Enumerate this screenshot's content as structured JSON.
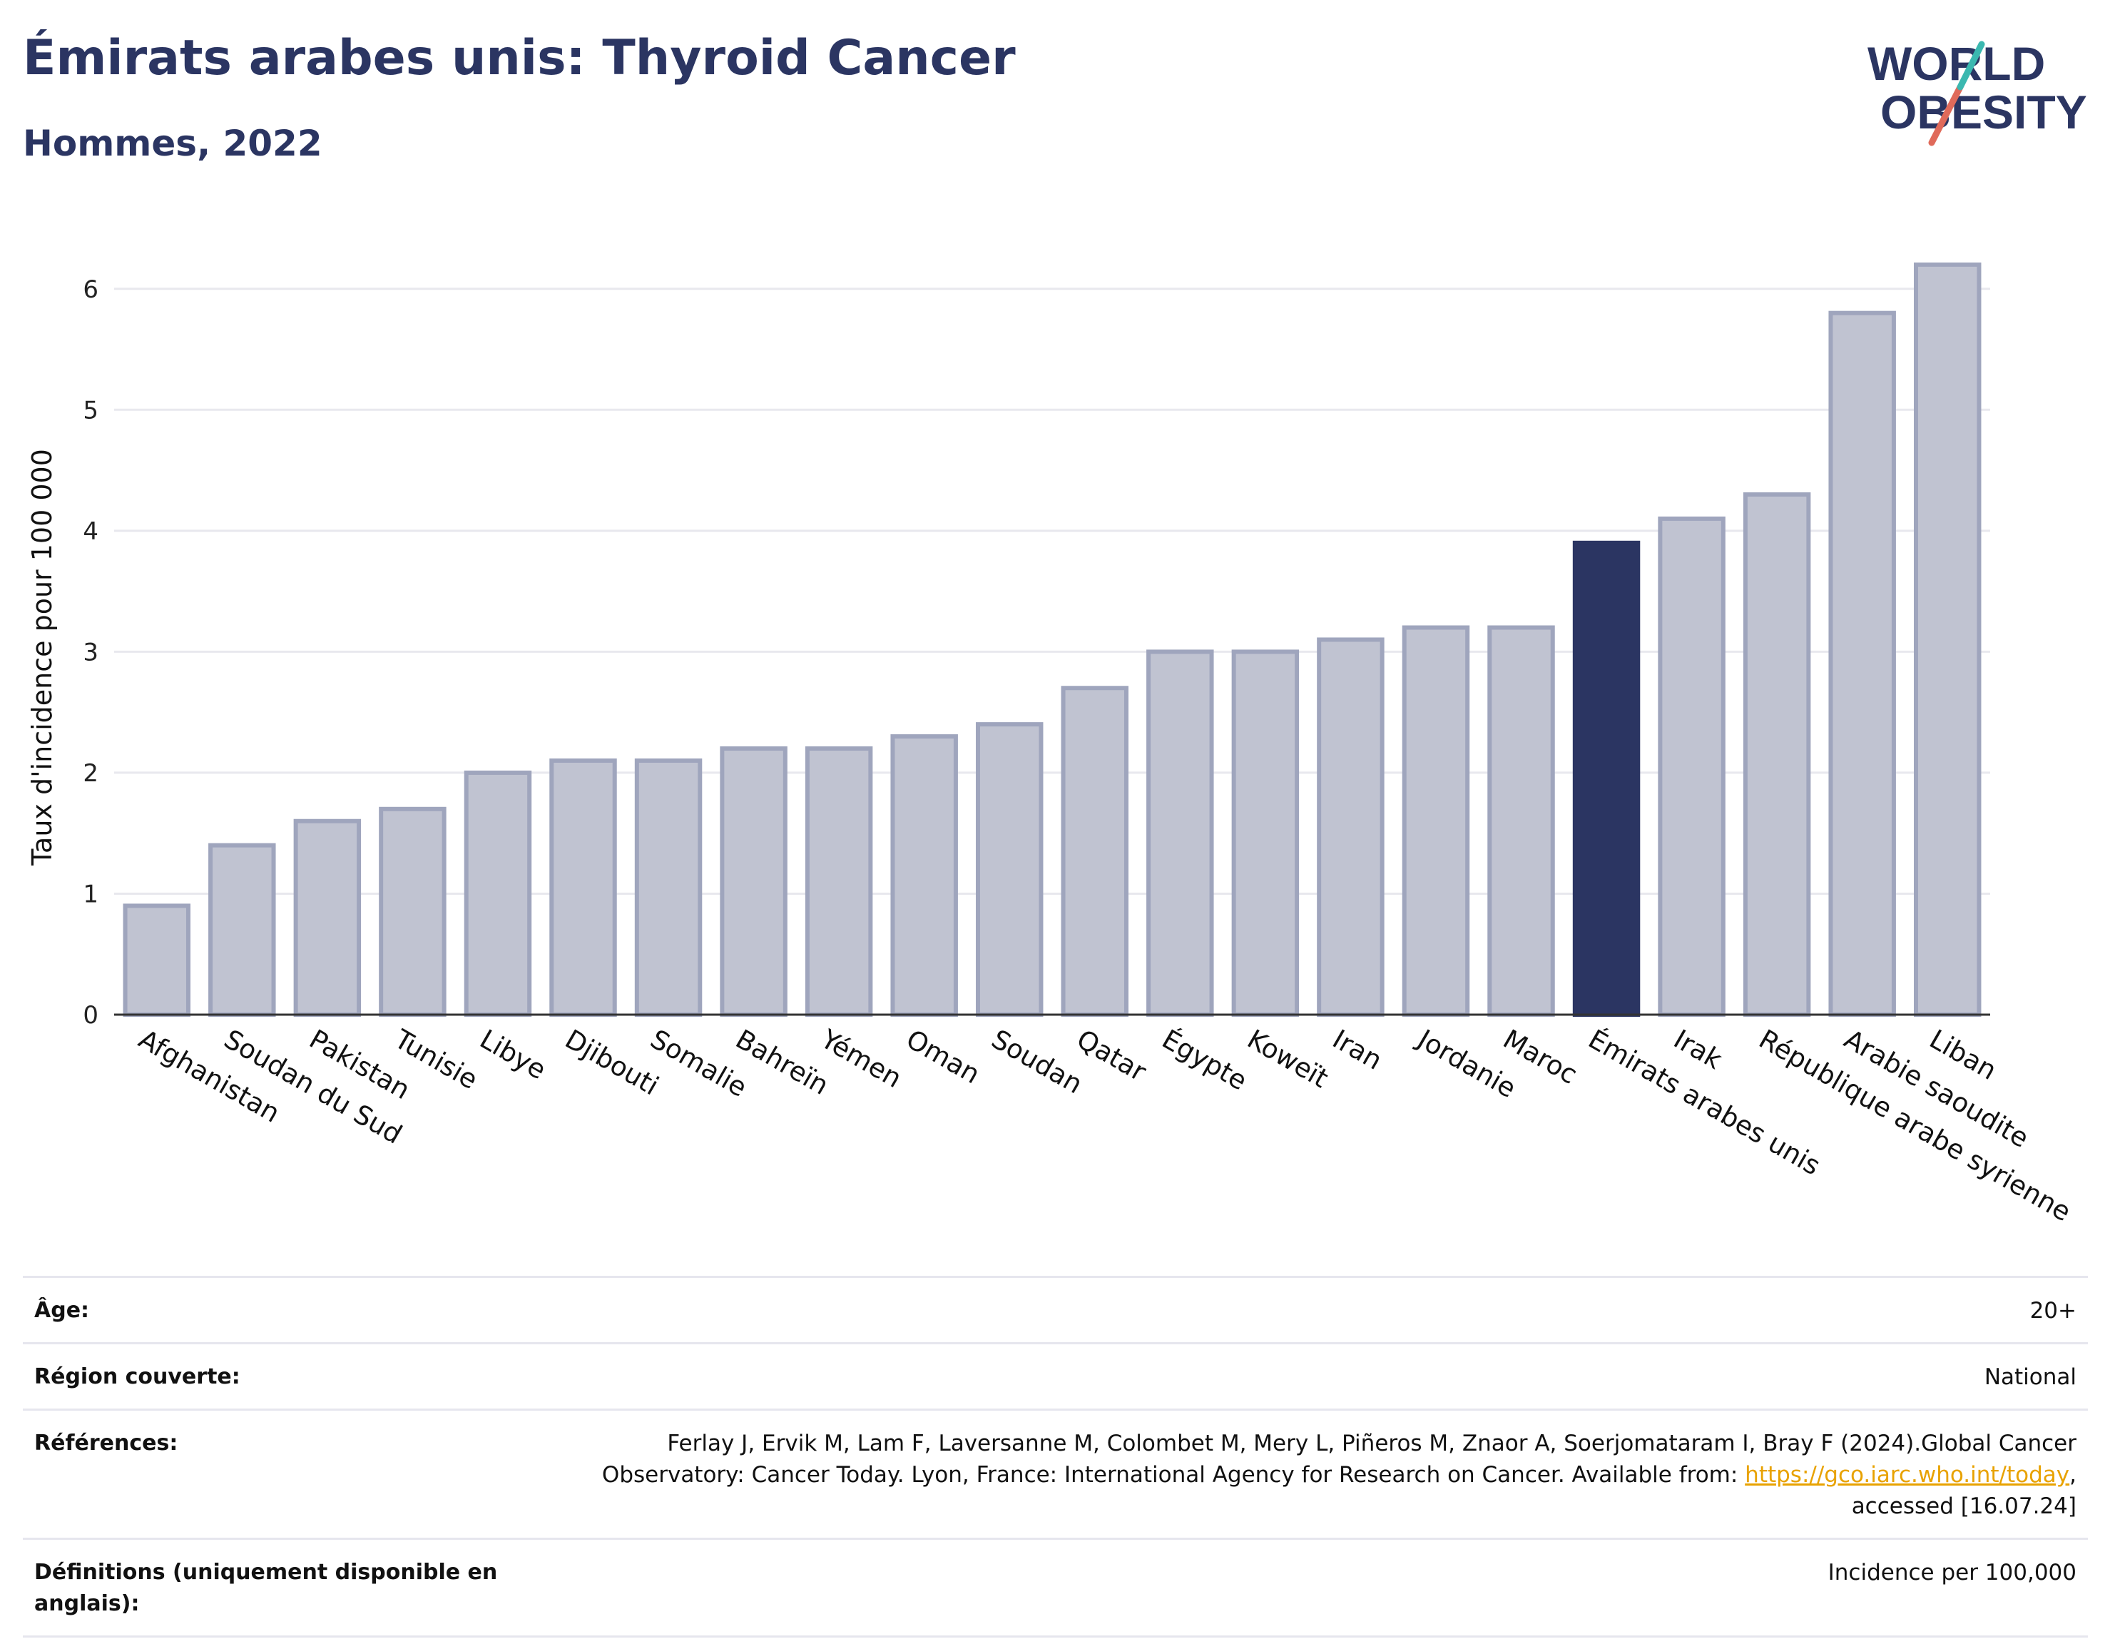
{
  "header": {
    "title": "Émirats arabes unis: Thyroid Cancer",
    "subtitle": "Hommes, 2022"
  },
  "logo": {
    "line1": "WORLD",
    "line2": "OBESITY"
  },
  "colors": {
    "highlight": "#2b3562",
    "bar_fill": "#c0c3d1",
    "bar_stroke": "#9fa5bd",
    "accent_teal": "#3bb8b0",
    "accent_red": "#e06a5a"
  },
  "chart_data": {
    "type": "bar",
    "ylabel": "Taux d'incidence pour 100 000",
    "ylim": [
      0,
      6.5
    ],
    "yticks": [
      0,
      1,
      2,
      3,
      4,
      5,
      6
    ],
    "grid": true,
    "categories": [
      "Afghanistan",
      "Soudan du Sud",
      "Pakistan",
      "Tunisie",
      "Libye",
      "Djibouti",
      "Somalie",
      "Bahreïn",
      "Yémen",
      "Oman",
      "Soudan",
      "Qatar",
      "Égypte",
      "Koweït",
      "Iran",
      "Jordanie",
      "Maroc",
      "Émirats arabes unis",
      "Irak",
      "République arabe syrienne",
      "Arabie saoudite",
      "Liban"
    ],
    "values": [
      0.9,
      1.4,
      1.6,
      1.7,
      2.0,
      2.1,
      2.1,
      2.2,
      2.2,
      2.3,
      2.4,
      2.7,
      3.0,
      3.0,
      3.1,
      3.2,
      3.2,
      3.9,
      4.1,
      4.3,
      5.8,
      6.2
    ],
    "highlight": "Émirats arabes unis"
  },
  "meta": {
    "age_label": "Âge:",
    "age_value": "20+",
    "region_label": "Région couverte:",
    "region_value": "National",
    "ref_label": "Références:",
    "ref_text_before": "Ferlay J, Ervik M, Lam F, Laversanne M, Colombet M, Mery L, Piñeros M, Znaor A, Soerjomataram I, Bray F (2024).Global Cancer Observatory: Cancer Today. Lyon, France: International Agency for Research on Cancer. Available from: ",
    "ref_link": "https://gco.iarc.who.int/today",
    "ref_text_after": ", accessed [16.07.24]",
    "def_label": "Définitions (uniquement disponible en anglais):",
    "def_value": "Incidence per 100,000"
  }
}
